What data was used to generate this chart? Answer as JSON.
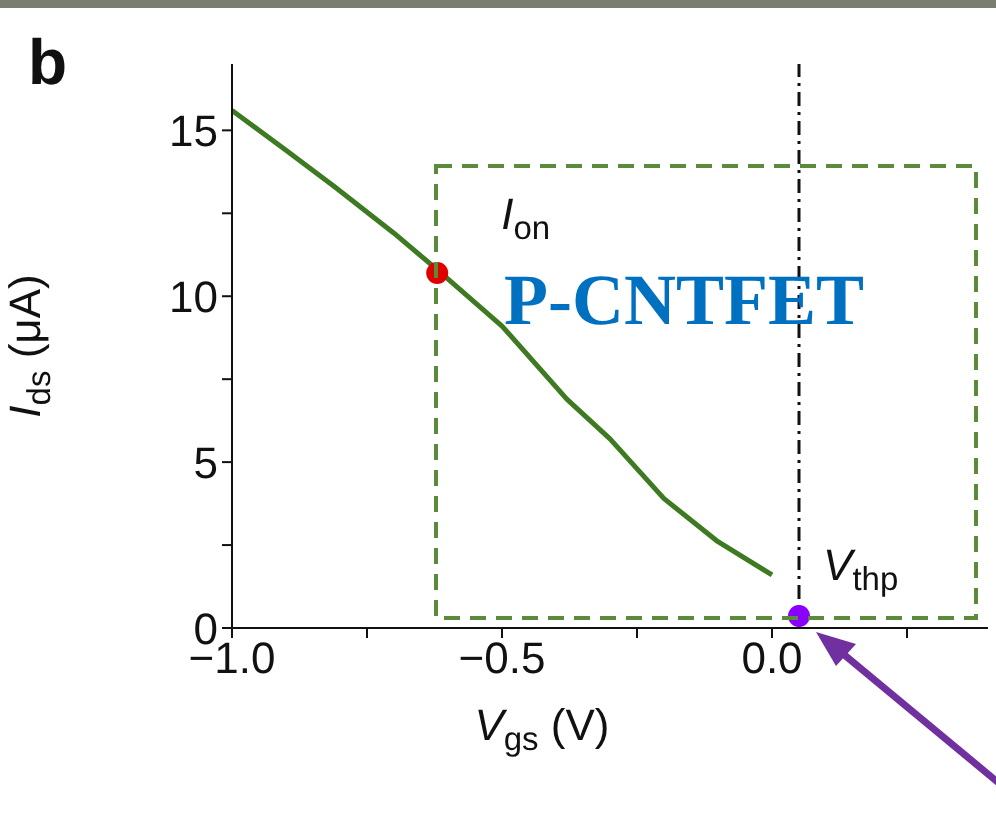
{
  "chart_data": {
    "type": "line",
    "xlabel": "V$_{gs}$ (V)",
    "ylabel": "I$_{ds}$ (μA)",
    "xlim": [
      -1.0,
      0.4
    ],
    "xticks": [
      {
        "value": -1.0,
        "label": "−1.0"
      },
      {
        "value": -0.75,
        "label": null
      },
      {
        "value": -0.5,
        "label": "−0.5"
      },
      {
        "value": -0.25,
        "label": null
      },
      {
        "value": 0.0,
        "label": "0.0"
      },
      {
        "value": 0.25,
        "label": null
      }
    ],
    "ylim": [
      0,
      17
    ],
    "yticks": [
      0,
      {
        "value": 2.5,
        "label": null
      },
      5,
      {
        "value": 7.5,
        "label": null
      },
      10,
      {
        "value": 12.5,
        "label": null
      },
      15
    ],
    "series": [
      {
        "color": "#3d7a22",
        "x": [
          -1.0,
          -0.9,
          -0.81,
          -0.7,
          -0.62,
          -0.5,
          -0.38,
          -0.3,
          -0.2,
          -0.1,
          0.0
        ],
        "values": [
          15.6,
          14.4,
          13.3,
          11.9,
          10.8,
          9.1,
          6.9,
          5.7,
          3.9,
          2.6,
          1.6
        ]
      },
      {
        "type": "scatter",
        "color": "#e00000",
        "x": [
          -0.62
        ],
        "values": [
          10.7
        ]
      },
      {
        "type": "scatter",
        "color": "#8a00ff",
        "x": [
          0.05
        ],
        "values": [
          0.36
        ]
      }
    ],
    "ref_lines": [
      {
        "axis": "x",
        "value": 0.05,
        "color": "#111111",
        "line_style": "dashed"
      }
    ],
    "annotations": [
      "b",
      "P-CNTFET",
      {
        "text": "I$_{on}$",
        "x": -0.62,
        "y": 10.7
      },
      {
        "text": "V$_{thp}$",
        "x": 0.05,
        "y": 0.36
      }
    ]
  }
}
